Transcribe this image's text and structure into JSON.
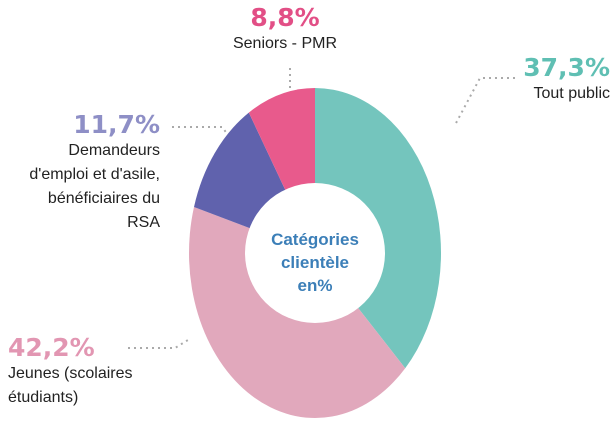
{
  "chart_data": {
    "type": "donut",
    "center_label": "Catégories clientèle en%",
    "categories": [
      "Tout public",
      "Jeunes (scolaires étudiants)",
      "Demandeurs d'emploi et d'asile, bénéficiaires du RSA",
      "Seniors - PMR"
    ],
    "values": [
      37.3,
      42.2,
      11.7,
      8.8
    ],
    "value_labels": [
      "37,3%",
      "42,2%",
      "11,7%",
      "8,8%"
    ],
    "colors": [
      "#74c5bd",
      "#e1a8bc",
      "#6062ad",
      "#e85a8c"
    ]
  }
}
